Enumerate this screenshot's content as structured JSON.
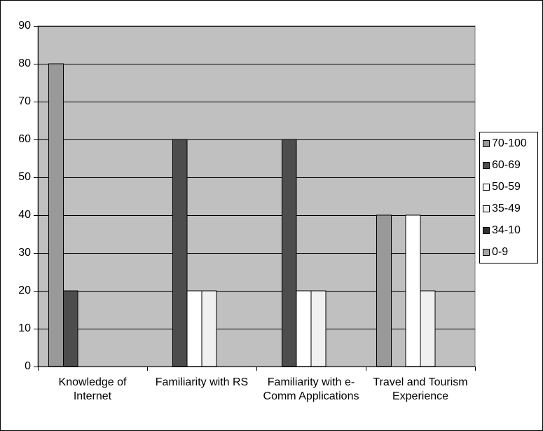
{
  "chart_data": {
    "type": "bar",
    "categories": [
      "Knowledge of Internet",
      "Familiarity with RS",
      "Familiarity with e-Comm Applications",
      "Travel and Tourism Experience"
    ],
    "series": [
      {
        "name": "70-100",
        "color": "#999999",
        "values": [
          80,
          0,
          0,
          40
        ]
      },
      {
        "name": "60-69",
        "color": "#4d4d4d",
        "values": [
          20,
          60,
          60,
          0
        ]
      },
      {
        "name": "50-59",
        "color": "#ffffff",
        "values": [
          0,
          20,
          20,
          40
        ]
      },
      {
        "name": "35-49",
        "color": "#f0f0f0",
        "values": [
          0,
          20,
          20,
          20
        ]
      },
      {
        "name": "34-10",
        "color": "#333333",
        "values": [
          0,
          0,
          0,
          0
        ]
      },
      {
        "name": "0-9",
        "color": "#a6a6a6",
        "values": [
          0,
          0,
          0,
          0
        ]
      }
    ],
    "ylim": [
      0,
      90
    ],
    "yticks": [
      0,
      10,
      20,
      30,
      40,
      50,
      60,
      70,
      80,
      90
    ],
    "grid": true,
    "legend": "right",
    "plot_background": "#c0c0c0"
  }
}
